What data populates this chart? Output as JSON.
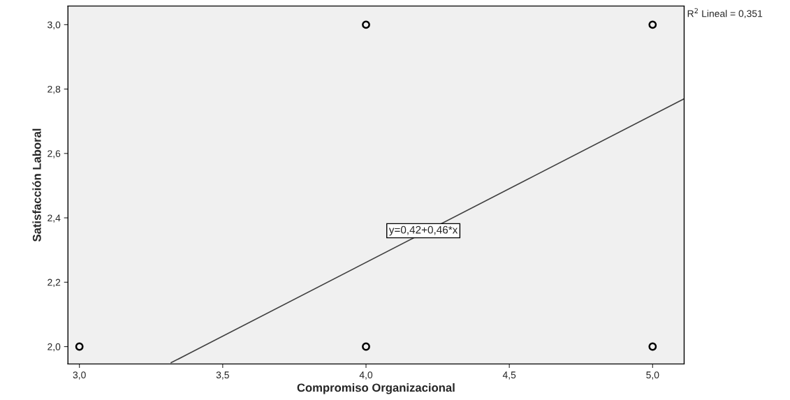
{
  "chart_data": {
    "type": "scatter",
    "xlabel": "Compromiso Organizacional",
    "ylabel": "Satisfacción Laboral",
    "series": [
      {
        "color": "#000000",
        "x": [
          3,
          4,
          4,
          5,
          5
        ],
        "values": [
          2,
          3,
          2,
          3,
          2
        ],
        "marker": "circle"
      },
      {
        "type": "line",
        "color": "#404040",
        "x": [
          3.32,
          5.11
        ],
        "values": [
          1.95,
          2.77
        ],
        "marker": "none",
        "line_style": "solid"
      }
    ],
    "xlim": [
      2.96,
      5.11
    ],
    "ylim": [
      1.946,
      3.058
    ],
    "xticks": [
      {
        "value": 3.0,
        "label": "3,0"
      },
      {
        "value": 3.5,
        "label": "3,5"
      },
      {
        "value": 4.0,
        "label": "4,0"
      },
      {
        "value": 4.5,
        "label": "4,5"
      },
      {
        "value": 5.0,
        "label": "5,0"
      }
    ],
    "yticks": [
      {
        "value": 2.0,
        "label": "2,0"
      },
      {
        "value": 2.2,
        "label": "2,2"
      },
      {
        "value": 2.4,
        "label": "2,4"
      },
      {
        "value": 2.6,
        "label": "2,6"
      },
      {
        "value": 2.8,
        "label": "2,8"
      },
      {
        "value": 3.0,
        "label": "3,0"
      }
    ],
    "annotations": [
      "R$^{2}$ Lineal = 0,351",
      {
        "text": "y=0,42+0,46*x",
        "x": 4.2,
        "y": 2.36
      }
    ],
    "grid": false,
    "legend": false
  }
}
